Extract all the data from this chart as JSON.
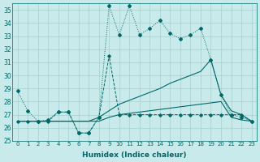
{
  "xlabel": "Humidex (Indice chaleur)",
  "bg_color": "#c8eaea",
  "grid_color": "#a8cece",
  "line_color": "#006868",
  "xlim": [
    -0.5,
    23.5
  ],
  "ylim": [
    25,
    35.5
  ],
  "yticks": [
    25,
    26,
    27,
    28,
    29,
    30,
    31,
    32,
    33,
    34,
    35
  ],
  "xticks": [
    0,
    1,
    2,
    3,
    4,
    5,
    6,
    7,
    8,
    9,
    10,
    11,
    12,
    13,
    14,
    15,
    16,
    17,
    18,
    19,
    20,
    21,
    22,
    23
  ],
  "s1_x": [
    0,
    1,
    2,
    3,
    4,
    5,
    6,
    7,
    8,
    9,
    10,
    11,
    12,
    13,
    14,
    15,
    16,
    17,
    18,
    19,
    20,
    21,
    22,
    23
  ],
  "s1_y": [
    28.8,
    27.3,
    26.5,
    26.6,
    27.2,
    27.2,
    25.6,
    25.6,
    26.8,
    35.3,
    33.1,
    35.3,
    33.1,
    33.6,
    34.2,
    33.2,
    32.8,
    33.1,
    33.6,
    31.2,
    28.5,
    27.0,
    26.8,
    26.5
  ],
  "s2_x": [
    0,
    1,
    2,
    3,
    4,
    5,
    6,
    7,
    8,
    9,
    10,
    11,
    12,
    13,
    14,
    15,
    16,
    17,
    18,
    19,
    20,
    21,
    22,
    23
  ],
  "s2_y": [
    26.5,
    26.5,
    26.5,
    26.5,
    27.2,
    27.2,
    25.6,
    25.6,
    26.8,
    31.5,
    27.0,
    27.0,
    27.0,
    27.0,
    27.0,
    27.0,
    27.0,
    27.0,
    27.0,
    27.0,
    27.0,
    27.0,
    27.0,
    26.5
  ],
  "s3_x": [
    0,
    1,
    2,
    3,
    4,
    5,
    6,
    7,
    8,
    9,
    10,
    11,
    12,
    13,
    14,
    15,
    16,
    17,
    18,
    19,
    20,
    21,
    22,
    23
  ],
  "s3_y": [
    26.5,
    26.5,
    26.5,
    26.5,
    26.5,
    26.5,
    26.5,
    26.5,
    26.8,
    27.3,
    27.8,
    28.1,
    28.4,
    28.7,
    29.0,
    29.4,
    29.7,
    30.0,
    30.3,
    31.2,
    28.5,
    27.3,
    27.0,
    26.5
  ],
  "s4_x": [
    0,
    1,
    2,
    3,
    4,
    5,
    6,
    7,
    8,
    9,
    10,
    11,
    12,
    13,
    14,
    15,
    16,
    17,
    18,
    19,
    20,
    21,
    22,
    23
  ],
  "s4_y": [
    26.5,
    26.5,
    26.5,
    26.5,
    26.5,
    26.5,
    26.5,
    26.5,
    26.5,
    26.8,
    27.0,
    27.1,
    27.2,
    27.3,
    27.4,
    27.5,
    27.6,
    27.7,
    27.8,
    27.9,
    28.0,
    26.8,
    26.6,
    26.5
  ]
}
